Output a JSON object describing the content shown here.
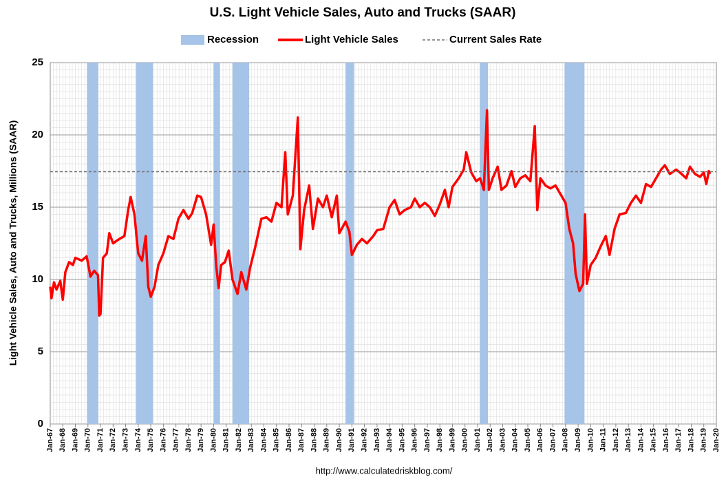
{
  "chart_data": {
    "type": "line",
    "title": "U.S. Light Vehicle Sales, Auto and Trucks (SAAR)",
    "y_label": "Light Vehicle Sales, Auto and Trucks, Millions (SAAR)",
    "source": "http://www.calculatedriskblog.com/",
    "xlim": [
      1967,
      2020
    ],
    "ylim": [
      0,
      25
    ],
    "yticks": [
      0,
      5,
      10,
      15,
      20,
      25
    ],
    "grid": true,
    "xticks": [
      {
        "value": 1967,
        "label": "Jan-67"
      },
      {
        "value": 1968,
        "label": "Jan-68"
      },
      {
        "value": 1969,
        "label": "Jan-69"
      },
      {
        "value": 1970,
        "label": "Jan-70"
      },
      {
        "value": 1971,
        "label": "Jan-71"
      },
      {
        "value": 1972,
        "label": "Jan-72"
      },
      {
        "value": 1973,
        "label": "Jan-73"
      },
      {
        "value": 1974,
        "label": "Jan-74"
      },
      {
        "value": 1975,
        "label": "Jan-75"
      },
      {
        "value": 1976,
        "label": "Jan-76"
      },
      {
        "value": 1977,
        "label": "Jan-77"
      },
      {
        "value": 1978,
        "label": "Jan-78"
      },
      {
        "value": 1979,
        "label": "Jan-79"
      },
      {
        "value": 1980,
        "label": "Jan-80"
      },
      {
        "value": 1981,
        "label": "Jan-81"
      },
      {
        "value": 1982,
        "label": "Jan-82"
      },
      {
        "value": 1983,
        "label": "Jan-83"
      },
      {
        "value": 1984,
        "label": "Jan-84"
      },
      {
        "value": 1985,
        "label": "Jan-85"
      },
      {
        "value": 1986,
        "label": "Jan-86"
      },
      {
        "value": 1987,
        "label": "Jan-87"
      },
      {
        "value": 1988,
        "label": "Jan-88"
      },
      {
        "value": 1989,
        "label": "Jan-89"
      },
      {
        "value": 1990,
        "label": "Jan-90"
      },
      {
        "value": 1991,
        "label": "Jan-91"
      },
      {
        "value": 1992,
        "label": "Jan-92"
      },
      {
        "value": 1993,
        "label": "Jan-93"
      },
      {
        "value": 1994,
        "label": "Jan-94"
      },
      {
        "value": 1995,
        "label": "Jan-95"
      },
      {
        "value": 1996,
        "label": "Jan-96"
      },
      {
        "value": 1997,
        "label": "Jan-97"
      },
      {
        "value": 1998,
        "label": "Jan-98"
      },
      {
        "value": 1999,
        "label": "Jan-99"
      },
      {
        "value": 2000,
        "label": "Jan-00"
      },
      {
        "value": 2001,
        "label": "Jan-01"
      },
      {
        "value": 2002,
        "label": "Jan-02"
      },
      {
        "value": 2003,
        "label": "Jan-03"
      },
      {
        "value": 2004,
        "label": "Jan-04"
      },
      {
        "value": 2005,
        "label": "Jan-05"
      },
      {
        "value": 2006,
        "label": "Jan-06"
      },
      {
        "value": 2007,
        "label": "Jan-07"
      },
      {
        "value": 2008,
        "label": "Jan-08"
      },
      {
        "value": 2009,
        "label": "Jan-09"
      },
      {
        "value": 2010,
        "label": "Jan-10"
      },
      {
        "value": 2011,
        "label": "Jan-11"
      },
      {
        "value": 2012,
        "label": "Jan-12"
      },
      {
        "value": 2013,
        "label": "Jan-13"
      },
      {
        "value": 2014,
        "label": "Jan-14"
      },
      {
        "value": 2015,
        "label": "Jan-15"
      },
      {
        "value": 2016,
        "label": "Jan-16"
      },
      {
        "value": 2017,
        "label": "Jan-17"
      },
      {
        "value": 2018,
        "label": "Jan-18"
      },
      {
        "value": 2019,
        "label": "Jan-19"
      },
      {
        "value": 2020,
        "label": "Jan-20"
      }
    ],
    "recession": {
      "name": "Recession",
      "color": "#a6c3e8",
      "periods": [
        [
          1969.92,
          1970.83
        ],
        [
          1973.83,
          1975.17
        ],
        [
          1980.0,
          1980.5
        ],
        [
          1981.5,
          1982.83
        ],
        [
          1990.5,
          1991.17
        ],
        [
          2001.17,
          2001.83
        ],
        [
          2007.92,
          2009.5
        ]
      ]
    },
    "current_rate": {
      "name": "Current Sales Rate",
      "value": 17.45,
      "color": "#707070"
    },
    "x": [
      1967.0,
      1967.1,
      1967.3,
      1967.5,
      1967.8,
      1968.0,
      1968.2,
      1968.5,
      1968.8,
      1969.0,
      1969.5,
      1969.9,
      1970.2,
      1970.5,
      1970.8,
      1970.9,
      1971.0,
      1971.2,
      1971.5,
      1971.7,
      1972.0,
      1972.5,
      1972.9,
      1973.2,
      1973.4,
      1973.7,
      1974.0,
      1974.3,
      1974.6,
      1974.8,
      1975.0,
      1975.3,
      1975.6,
      1976.0,
      1976.4,
      1976.8,
      1977.2,
      1977.6,
      1978.0,
      1978.3,
      1978.7,
      1979.0,
      1979.4,
      1979.8,
      1980.0,
      1980.2,
      1980.4,
      1980.6,
      1980.9,
      1981.2,
      1981.5,
      1981.9,
      1982.2,
      1982.6,
      1982.9,
      1983.3,
      1983.8,
      1984.2,
      1984.6,
      1985.0,
      1985.4,
      1985.7,
      1985.9,
      1986.3,
      1986.7,
      1986.9,
      1987.2,
      1987.6,
      1987.9,
      1988.3,
      1988.7,
      1989.0,
      1989.4,
      1989.8,
      1990.0,
      1990.5,
      1990.8,
      1991.0,
      1991.4,
      1991.8,
      1992.2,
      1992.7,
      1993.0,
      1993.5,
      1994.0,
      1994.4,
      1994.8,
      1995.2,
      1995.7,
      1996.0,
      1996.4,
      1996.8,
      1997.2,
      1997.6,
      1998.0,
      1998.4,
      1998.7,
      1999.0,
      1999.5,
      1999.9,
      2000.1,
      2000.5,
      2000.9,
      2001.2,
      2001.5,
      2001.75,
      2001.9,
      2002.2,
      2002.6,
      2002.9,
      2003.3,
      2003.7,
      2004.0,
      2004.4,
      2004.8,
      2005.2,
      2005.55,
      2005.75,
      2006.0,
      2006.4,
      2006.8,
      2007.2,
      2007.6,
      2008.0,
      2008.3,
      2008.6,
      2008.8,
      2009.1,
      2009.4,
      2009.55,
      2009.7,
      2010.0,
      2010.4,
      2010.8,
      2011.2,
      2011.5,
      2011.9,
      2012.3,
      2012.8,
      2013.2,
      2013.6,
      2014.0,
      2014.4,
      2014.8,
      2015.2,
      2015.6,
      2015.9,
      2016.3,
      2016.8,
      2017.1,
      2017.6,
      2017.9,
      2018.3,
      2018.7,
      2019.0,
      2019.2,
      2019.4,
      2019.5
    ],
    "series": [
      {
        "name": "Light Vehicle Sales",
        "color": "#ff0000",
        "values": [
          9.5,
          8.7,
          9.8,
          9.3,
          9.9,
          8.6,
          10.5,
          11.2,
          11.0,
          11.5,
          11.3,
          11.6,
          10.2,
          10.6,
          10.3,
          7.5,
          7.6,
          11.5,
          11.8,
          13.2,
          12.5,
          12.8,
          13.0,
          14.8,
          15.7,
          14.5,
          11.8,
          11.3,
          13.0,
          9.5,
          8.8,
          9.5,
          11.0,
          11.8,
          13.0,
          12.8,
          14.2,
          14.8,
          14.2,
          14.6,
          15.8,
          15.7,
          14.5,
          12.4,
          13.8,
          11.0,
          9.4,
          11.0,
          11.2,
          12.0,
          10.0,
          9.0,
          10.5,
          9.3,
          10.8,
          12.2,
          14.2,
          14.3,
          14.0,
          15.3,
          15.0,
          18.8,
          14.5,
          15.8,
          21.2,
          12.1,
          14.8,
          16.5,
          13.5,
          15.6,
          15.0,
          15.8,
          14.3,
          15.8,
          13.2,
          14.0,
          13.3,
          11.7,
          12.4,
          12.8,
          12.5,
          13.0,
          13.4,
          13.5,
          15.0,
          15.5,
          14.5,
          14.8,
          15.0,
          15.6,
          15.0,
          15.3,
          15.0,
          14.4,
          15.2,
          16.2,
          15.0,
          16.4,
          17.0,
          17.6,
          18.8,
          17.4,
          16.8,
          17.0,
          16.2,
          21.7,
          16.2,
          17.0,
          17.8,
          16.2,
          16.5,
          17.5,
          16.4,
          17.0,
          17.2,
          16.8,
          20.6,
          14.8,
          17.0,
          16.5,
          16.3,
          16.5,
          15.9,
          15.3,
          13.5,
          12.5,
          10.4,
          9.2,
          9.7,
          14.5,
          9.7,
          11.0,
          11.5,
          12.3,
          13.0,
          11.7,
          13.5,
          14.5,
          14.6,
          15.3,
          15.8,
          15.3,
          16.6,
          16.4,
          17.0,
          17.6,
          17.9,
          17.3,
          17.6,
          17.4,
          17.0,
          17.8,
          17.3,
          17.1,
          17.4,
          16.6,
          17.5,
          17.3
        ]
      }
    ]
  }
}
